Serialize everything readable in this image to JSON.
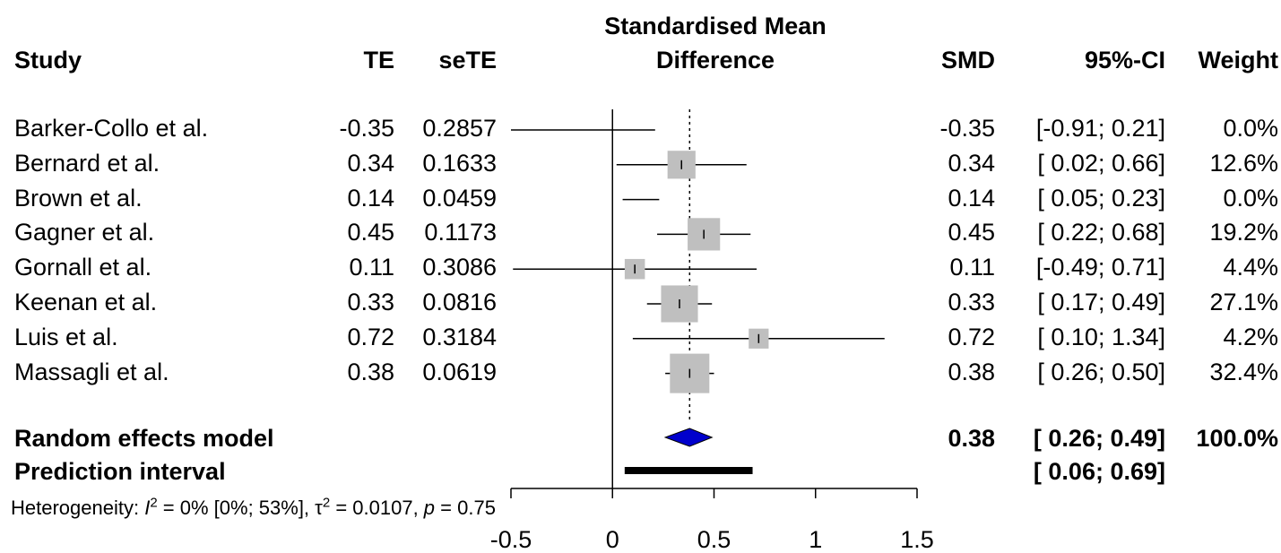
{
  "headers": {
    "study": "Study",
    "te": "TE",
    "sete": "seTE",
    "plot_line1": "Standardised Mean",
    "plot_line2": "Difference",
    "smd": "SMD",
    "ci": "95%-CI",
    "weight": "Weight"
  },
  "studies": [
    {
      "name": "Barker-Collo et al.",
      "te": "-0.35",
      "sete": "0.2857",
      "smd": "-0.35",
      "ci": "[-0.91; 0.21]",
      "weight": "0.0%"
    },
    {
      "name": "Bernard et al.",
      "te": "0.34",
      "sete": "0.1633",
      "smd": "0.34",
      "ci": "[ 0.02; 0.66]",
      "weight": "12.6%"
    },
    {
      "name": "Brown et al.",
      "te": "0.14",
      "sete": "0.0459",
      "smd": "0.14",
      "ci": "[ 0.05; 0.23]",
      "weight": "0.0%"
    },
    {
      "name": "Gagner et al.",
      "te": "0.45",
      "sete": "0.1173",
      "smd": "0.45",
      "ci": "[ 0.22; 0.68]",
      "weight": "19.2%"
    },
    {
      "name": "Gornall et al.",
      "te": "0.11",
      "sete": "0.3086",
      "smd": "0.11",
      "ci": "[-0.49; 0.71]",
      "weight": "4.4%"
    },
    {
      "name": "Keenan et al.",
      "te": "0.33",
      "sete": "0.0816",
      "smd": "0.33",
      "ci": "[ 0.17; 0.49]",
      "weight": "27.1%"
    },
    {
      "name": "Luis et al.",
      "te": "0.72",
      "sete": "0.3184",
      "smd": "0.72",
      "ci": "[ 0.10; 1.34]",
      "weight": "4.2%"
    },
    {
      "name": "Massagli et al.",
      "te": "0.38",
      "sete": "0.0619",
      "smd": "0.38",
      "ci": "[ 0.26; 0.50]",
      "weight": "32.4%"
    }
  ],
  "pooled": {
    "label": "Random effects model",
    "smd": "0.38",
    "ci": "[ 0.26; 0.49]",
    "weight": "100.0%"
  },
  "prediction": {
    "label": "Prediction interval",
    "ci": "[ 0.06; 0.69]"
  },
  "heterogeneity": {
    "prefix": "Heterogeneity: ",
    "i_symbol": "I",
    "i_value": " = 0% [0%; 53%], ",
    "tau_symbol": "τ",
    "tau_value": " = 0.0107, ",
    "p_symbol": "p",
    "p_value": " = 0.75",
    "superscript": "2"
  },
  "colors": {
    "diamond": "#0000cc",
    "box": "#bfbfbf",
    "line": "#000000"
  },
  "chart_data": {
    "type": "forest",
    "xlim": [
      -0.5,
      1.5
    ],
    "xticks": [
      "-0.5",
      "0",
      "0.5",
      "1",
      "1.5"
    ],
    "reference_line": 0,
    "pooled_line": 0.38,
    "studies": [
      {
        "name": "Barker-Collo et al.",
        "est": -0.35,
        "lower": -0.91,
        "upper": 0.21,
        "weight": 0.0
      },
      {
        "name": "Bernard et al.",
        "est": 0.34,
        "lower": 0.02,
        "upper": 0.66,
        "weight": 12.6
      },
      {
        "name": "Brown et al.",
        "est": 0.14,
        "lower": 0.05,
        "upper": 0.23,
        "weight": 0.0
      },
      {
        "name": "Gagner et al.",
        "est": 0.45,
        "lower": 0.22,
        "upper": 0.68,
        "weight": 19.2
      },
      {
        "name": "Gornall et al.",
        "est": 0.11,
        "lower": -0.49,
        "upper": 0.71,
        "weight": 4.4
      },
      {
        "name": "Keenan et al.",
        "est": 0.33,
        "lower": 0.17,
        "upper": 0.49,
        "weight": 27.1
      },
      {
        "name": "Luis et al.",
        "est": 0.72,
        "lower": 0.1,
        "upper": 1.34,
        "weight": 4.2
      },
      {
        "name": "Massagli et al.",
        "est": 0.38,
        "lower": 0.26,
        "upper": 0.5,
        "weight": 32.4
      }
    ],
    "pooled": {
      "est": 0.38,
      "lower": 0.26,
      "upper": 0.49
    },
    "prediction_interval": {
      "lower": 0.06,
      "upper": 0.69
    }
  }
}
